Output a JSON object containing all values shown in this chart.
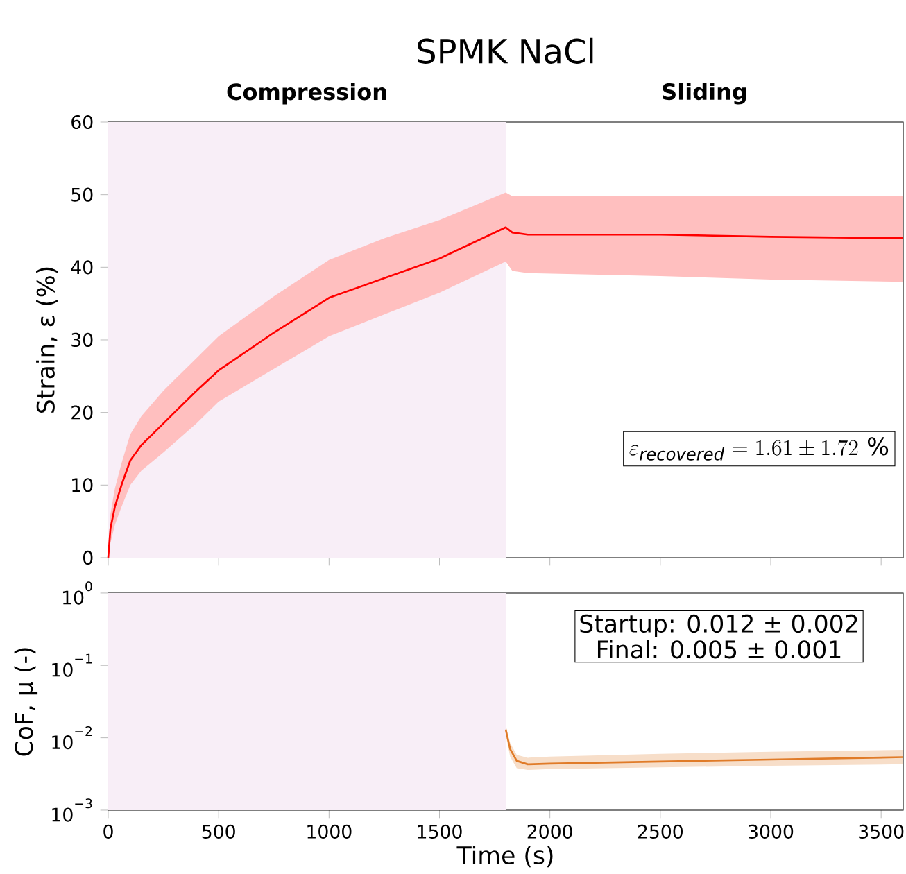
{
  "chart_data": [
    {
      "type": "line",
      "title": "SPMK NaCl",
      "ylabel": "Strain, ε (%)",
      "x": [
        0,
        10,
        30,
        60,
        100,
        150,
        250,
        400,
        500,
        750,
        1000,
        1250,
        1500,
        1800,
        1830,
        1900,
        2500,
        3000,
        3600
      ],
      "series": [
        {
          "color": "#ff0000",
          "values": [
            0,
            4,
            7,
            10,
            13.4,
            15.5,
            18.5,
            23,
            25.8,
            31,
            35.8,
            38.5,
            41.2,
            45.5,
            44.8,
            44.5,
            44.5,
            44.2,
            44
          ],
          "lower": [
            0,
            2,
            4.5,
            7,
            10,
            12,
            14.5,
            18.5,
            21.5,
            26,
            30.5,
            33.5,
            36.5,
            40.8,
            39.5,
            39.2,
            38.8,
            38.3,
            38
          ],
          "upper": [
            0,
            6,
            9.5,
            13,
            17,
            19.5,
            23,
            27.5,
            30.5,
            36,
            41,
            44,
            46.5,
            50.3,
            49.8,
            49.8,
            49.8,
            49.8,
            49.8
          ]
        }
      ],
      "xlim": [
        0,
        3600
      ],
      "xticks": [
        0,
        500,
        1000,
        1500,
        2000,
        2500,
        3000,
        3500
      ],
      "ylim": [
        0,
        60
      ],
      "yticks": [
        0,
        10,
        20,
        30,
        40,
        50,
        60
      ],
      "tick_labels": "y",
      "bands": [
        {
          "axis": "x",
          "from": 0,
          "to": 1800,
          "label": "Compression",
          "color": "#f8eef7"
        }
      ],
      "annotations": [
        "Sliding",
        "\\varepsilon_{\\mathit{recovered}} = 1.61 \\pm 1.72\\ \\%"
      ]
    },
    {
      "type": "line",
      "xlabel": "Time (s)",
      "ylabel": "CoF, μ (-)",
      "log": "y",
      "series": [
        {
          "color": "#e07b28",
          "x": [
            1800,
            1820,
            1850,
            1900,
            2000,
            2500,
            3000,
            3600
          ],
          "values": [
            0.013,
            0.007,
            0.0048,
            0.0043,
            0.0044,
            0.0047,
            0.005,
            0.0054
          ],
          "lower": [
            0.011,
            0.0055,
            0.0038,
            0.0036,
            0.0037,
            0.0039,
            0.0041,
            0.0043
          ],
          "upper": [
            0.015,
            0.0085,
            0.0058,
            0.0053,
            0.0055,
            0.006,
            0.0064,
            0.0068
          ]
        }
      ],
      "xlim": [
        0,
        3600
      ],
      "xticks": [
        0,
        500,
        1000,
        1500,
        2000,
        2500,
        3000,
        3500
      ],
      "ylim": [
        0.001,
        1
      ],
      "yticks": [
        {
          "value": 0.001,
          "label": "10$^{−3}$"
        },
        {
          "value": 0.01,
          "label": "10$^{−2}$"
        },
        {
          "value": 0.1,
          "label": "10$^{−1}$"
        },
        {
          "value": 1,
          "label": "10$^{0}$"
        }
      ],
      "bands": [
        {
          "axis": "x",
          "from": 0,
          "to": 1800,
          "color": "#f8eef7"
        }
      ],
      "annotations": [
        "Startup:   0.012 ± 0.002",
        "Final:   0.005 ± 0.001"
      ]
    }
  ]
}
